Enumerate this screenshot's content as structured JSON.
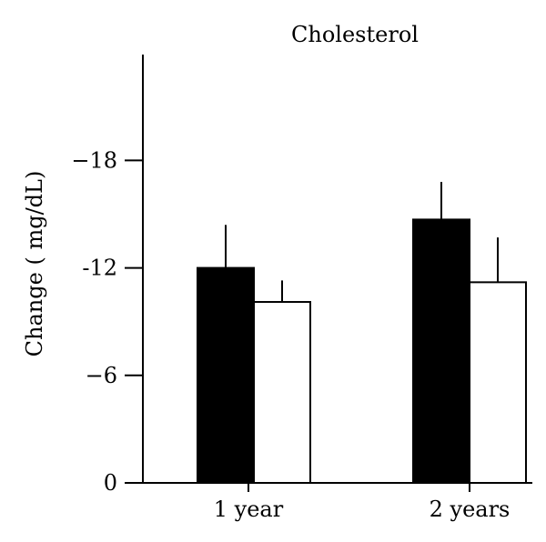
{
  "chart_data": {
    "type": "bar",
    "title": "Cholesterol",
    "ylabel": "Change ( mg/dL)",
    "xlabel": "",
    "categories": [
      "1 year",
      "2 years"
    ],
    "y_ticks": [
      {
        "value": 0,
        "label": "0"
      },
      {
        "value": 6,
        "label": "−6"
      },
      {
        "value": 12,
        "label": "-12"
      },
      {
        "value": 18,
        "label": "−18"
      }
    ],
    "ylim": [
      0,
      24
    ],
    "y_inverted_sign": true,
    "grid": false,
    "legend": "none",
    "series": [
      {
        "fill": "#000000",
        "values": [
          12.0,
          14.7
        ],
        "error": [
          2.4,
          2.1
        ]
      },
      {
        "fill": "#ffffff",
        "values": [
          10.1,
          11.2
        ],
        "error": [
          1.2,
          2.5
        ]
      }
    ]
  }
}
